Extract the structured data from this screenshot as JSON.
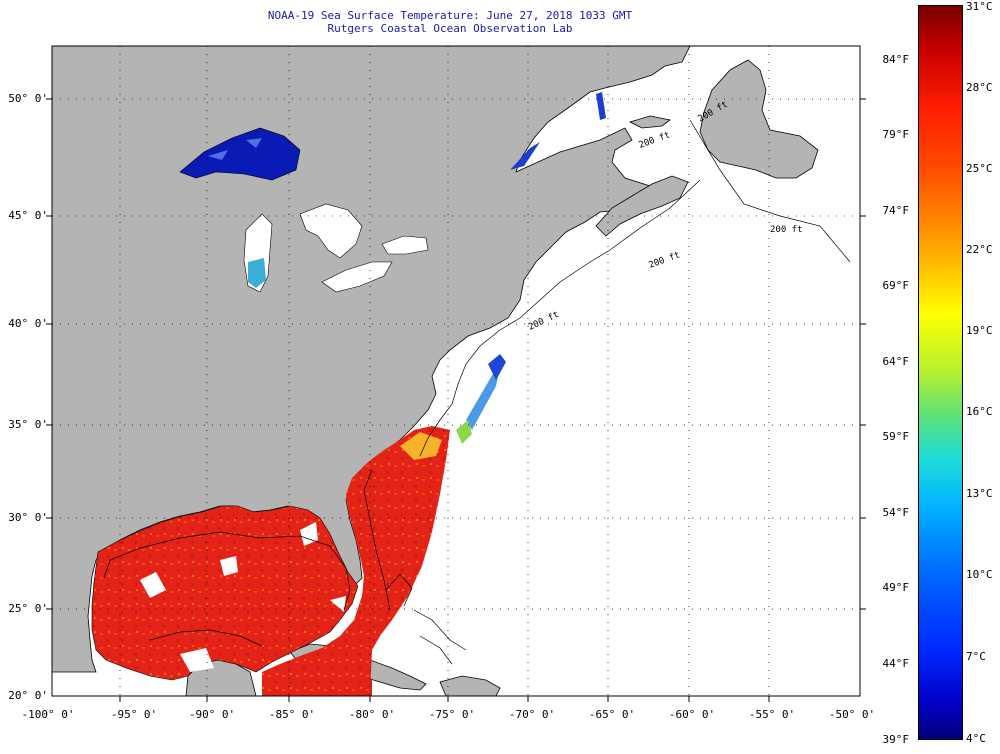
{
  "title": {
    "line1": "NOAA-19 Sea Surface Temperature:  June 27, 2018 1033 GMT",
    "line2": "Rutgers Coastal Ocean Observation Lab"
  },
  "map": {
    "lat_labels": [
      "50° 0'",
      "45° 0'",
      "40° 0'",
      "35° 0'",
      "30° 0'",
      "25° 0'",
      "20° 0'"
    ],
    "lon_labels": [
      "-100° 0'",
      "-95° 0'",
      "-90° 0'",
      "-85° 0'",
      "-80° 0'",
      "-75° 0'",
      "-70° 0'",
      "-65° 0'",
      "-60° 0'",
      "-55° 0'",
      "-50° 0'"
    ],
    "isobath_labels": [
      "200 ft",
      "200 ft",
      "200 ft",
      "200 ft",
      "200 ft"
    ],
    "colors": {
      "land": "#b4b4b4",
      "ocean_no_data": "#ffffff",
      "warm_sst": "#e8201c",
      "lake_sst": "#0a1ab4"
    }
  },
  "colorbar": {
    "celsius_labels": [
      "31°C",
      "28°C",
      "25°C",
      "22°C",
      "19°C",
      "16°C",
      "13°C",
      "10°C",
      "7°C",
      "4°C"
    ],
    "fahrenheit_labels": [
      "84°F",
      "79°F",
      "74°F",
      "69°F",
      "64°F",
      "59°F",
      "54°F",
      "49°F",
      "44°F",
      "39°F"
    ],
    "range_c": [
      4,
      31
    ]
  }
}
